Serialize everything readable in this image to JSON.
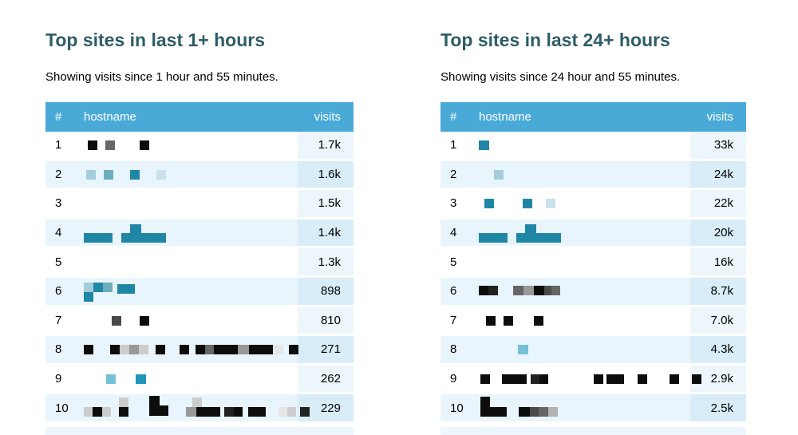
{
  "block_colors": {
    "k": "#0d0d0d",
    "k2": "#222222",
    "g1": "#666666",
    "g2": "#999999",
    "g3": "#cccccc",
    "g4": "#e6e6e6",
    "g6": "#4a4a4a",
    "g7": "#b3b3b3",
    "t1": "#1f87a5",
    "t2": "#6cadbe",
    "t3": "#a3cddb",
    "t4": "#c8e1ea",
    "t5": "#2196b8",
    "t6": "#74c0d6"
  },
  "colors": {
    "header_bg": "#49aad8",
    "row_alt_bg": "#e9f5fc",
    "title_color": "#2e5d66",
    "visits_column_tint": "rgba(73,170,216,0.10)"
  },
  "panels": [
    {
      "title": "Top sites in last 1+ hours",
      "subtitle": "Showing visits since 1 hour and 55 minutes.",
      "columns": {
        "rank": "#",
        "hostname": "hostname",
        "visits": "visits"
      },
      "rows": [
        {
          "rank": "1",
          "visits": "1.7k",
          "blocks": [
            [
              5,
              11,
              12,
              12,
              "k"
            ],
            [
              27,
              11,
              12,
              12,
              "g1"
            ],
            [
              70,
              11,
              12,
              12,
              "k"
            ]
          ]
        },
        {
          "rank": "2",
          "visits": "1.6k",
          "blocks": [
            [
              3,
              11,
              12,
              12,
              "t3"
            ],
            [
              25,
              11,
              12,
              12,
              "t2"
            ],
            [
              58,
              11,
              12,
              12,
              "t1"
            ],
            [
              91,
              11,
              12,
              12,
              "t4"
            ]
          ]
        },
        {
          "rank": "3",
          "visits": "1.5k",
          "blocks": []
        },
        {
          "rank": "4",
          "visits": "1.4k",
          "blocks": [
            [
              0,
              17,
              36,
              12,
              "t1"
            ],
            [
              47,
              17,
              13,
              12,
              "t1"
            ],
            [
              58,
              6,
              14,
              12,
              "t1"
            ],
            [
              58,
              17,
              45,
              12,
              "t1"
            ]
          ]
        },
        {
          "rank": "5",
          "visits": "1.3k",
          "blocks": []
        },
        {
          "rank": "6",
          "visits": "898",
          "blocks": [
            [
              0,
              6,
              12,
              12,
              "t3"
            ],
            [
              12,
              6,
              12,
              12,
              "t1"
            ],
            [
              24,
              6,
              12,
              12,
              "t2"
            ],
            [
              0,
              18,
              12,
              12,
              "t1"
            ],
            [
              42,
              8,
              22,
              12,
              "t1"
            ]
          ]
        },
        {
          "rank": "7",
          "visits": "810",
          "blocks": [
            [
              35,
              11,
              12,
              12,
              "g6"
            ],
            [
              70,
              11,
              12,
              12,
              "k"
            ]
          ]
        },
        {
          "rank": "8",
          "visits": "271",
          "blocks": [
            [
              0,
              11,
              12,
              12,
              "k"
            ],
            [
              33,
              11,
              12,
              12,
              "k"
            ],
            [
              45,
              11,
              12,
              12,
              "g3"
            ],
            [
              57,
              11,
              12,
              12,
              "g2"
            ],
            [
              69,
              11,
              12,
              12,
              "g3"
            ],
            [
              90,
              11,
              12,
              12,
              "k"
            ],
            [
              120,
              11,
              12,
              12,
              "k"
            ],
            [
              140,
              11,
              12,
              12,
              "k"
            ],
            [
              152,
              11,
              11,
              12,
              "g1"
            ],
            [
              163,
              11,
              30,
              12,
              "k"
            ],
            [
              193,
              11,
              14,
              12,
              "g2"
            ],
            [
              207,
              11,
              30,
              12,
              "k"
            ],
            [
              238,
              11,
              12,
              12,
              "g4"
            ],
            [
              257,
              11,
              12,
              12,
              "k"
            ]
          ]
        },
        {
          "rank": "9",
          "visits": "262",
          "blocks": [
            [
              28,
              11,
              12,
              12,
              "t6"
            ],
            [
              65,
              11,
              13,
              12,
              "t5"
            ]
          ]
        },
        {
          "rank": "10",
          "visits": "229",
          "blocks": [
            [
              0,
              16,
              11,
              12,
              "g3"
            ],
            [
              11,
              16,
              12,
              12,
              "k"
            ],
            [
              23,
              16,
              11,
              12,
              "g3"
            ],
            [
              44,
              4,
              12,
              12,
              "g3"
            ],
            [
              44,
              16,
              12,
              12,
              "k"
            ],
            [
              82,
              2,
              13,
              13,
              "k"
            ],
            [
              82,
              14,
              24,
              13,
              "k"
            ],
            [
              128,
              16,
              13,
              12,
              "g2"
            ],
            [
              136,
              4,
              12,
              12,
              "g3"
            ],
            [
              141,
              16,
              30,
              12,
              "k"
            ],
            [
              176,
              16,
              12,
              12,
              "k2"
            ],
            [
              188,
              16,
              11,
              12,
              "k"
            ],
            [
              206,
              16,
              22,
              12,
              "k"
            ],
            [
              244,
              16,
              11,
              12,
              "g4"
            ],
            [
              255,
              16,
              11,
              12,
              "g3"
            ],
            [
              271,
              16,
              12,
              12,
              "k2"
            ]
          ]
        }
      ]
    },
    {
      "title": "Top sites in last 24+ hours",
      "subtitle": "Showing visits since 24 hour and 55 minutes.",
      "columns": {
        "rank": "#",
        "hostname": "hostname",
        "visits": "visits"
      },
      "rows": [
        {
          "rank": "1",
          "visits": "33k",
          "blocks": [
            [
              0,
              11,
              13,
              12,
              "t1"
            ]
          ]
        },
        {
          "rank": "2",
          "visits": "24k",
          "blocks": [
            [
              19,
              11,
              12,
              12,
              "t3"
            ]
          ]
        },
        {
          "rank": "3",
          "visits": "22k",
          "blocks": [
            [
              7,
              11,
              12,
              12,
              "t1"
            ],
            [
              55,
              11,
              12,
              12,
              "t1"
            ],
            [
              84,
              11,
              12,
              12,
              "t4"
            ]
          ]
        },
        {
          "rank": "4",
          "visits": "20k",
          "blocks": [
            [
              0,
              17,
              36,
              12,
              "t1"
            ],
            [
              47,
              17,
              13,
              12,
              "t1"
            ],
            [
              58,
              6,
              14,
              12,
              "t1"
            ],
            [
              58,
              17,
              45,
              12,
              "t1"
            ]
          ]
        },
        {
          "rank": "5",
          "visits": "16k",
          "blocks": []
        },
        {
          "rank": "6",
          "visits": "8.7k",
          "blocks": [
            [
              0,
              10,
              12,
              12,
              "k"
            ],
            [
              12,
              10,
              12,
              12,
              "k2"
            ],
            [
              43,
              10,
              13,
              12,
              "g1"
            ],
            [
              56,
              10,
              13,
              12,
              "g2"
            ],
            [
              69,
              10,
              13,
              12,
              "k"
            ],
            [
              82,
              10,
              9,
              12,
              "g6"
            ],
            [
              91,
              10,
              11,
              12,
              "g1"
            ]
          ]
        },
        {
          "rank": "7",
          "visits": "7.0k",
          "blocks": [
            [
              9,
              11,
              12,
              12,
              "k"
            ],
            [
              31,
              11,
              12,
              12,
              "k"
            ],
            [
              69,
              11,
              12,
              12,
              "k"
            ]
          ]
        },
        {
          "rank": "8",
          "visits": "4.3k",
          "blocks": [
            [
              49,
              11,
              13,
              12,
              "t6"
            ]
          ]
        },
        {
          "rank": "9",
          "visits": "2.9k",
          "blocks": [
            [
              2,
              11,
              12,
              12,
              "k"
            ],
            [
              29,
              11,
              31,
              12,
              "k"
            ],
            [
              65,
              11,
              11,
              12,
              "k2"
            ],
            [
              76,
              11,
              11,
              12,
              "k"
            ],
            [
              144,
              11,
              12,
              12,
              "k"
            ],
            [
              160,
              11,
              22,
              12,
              "k"
            ],
            [
              199,
              11,
              12,
              12,
              "k"
            ],
            [
              239,
              11,
              12,
              12,
              "k"
            ],
            [
              267,
              11,
              12,
              12,
              "k"
            ]
          ]
        },
        {
          "rank": "10",
          "visits": "2.5k",
          "blocks": [
            [
              2,
              3,
              12,
              25,
              "k"
            ],
            [
              2,
              16,
              33,
              12,
              "k"
            ],
            [
              50,
              16,
              14,
              12,
              "k"
            ],
            [
              64,
              16,
              11,
              12,
              "g6"
            ],
            [
              75,
              16,
              12,
              12,
              "g1"
            ],
            [
              87,
              16,
              12,
              12,
              "g7"
            ]
          ]
        }
      ]
    }
  ]
}
